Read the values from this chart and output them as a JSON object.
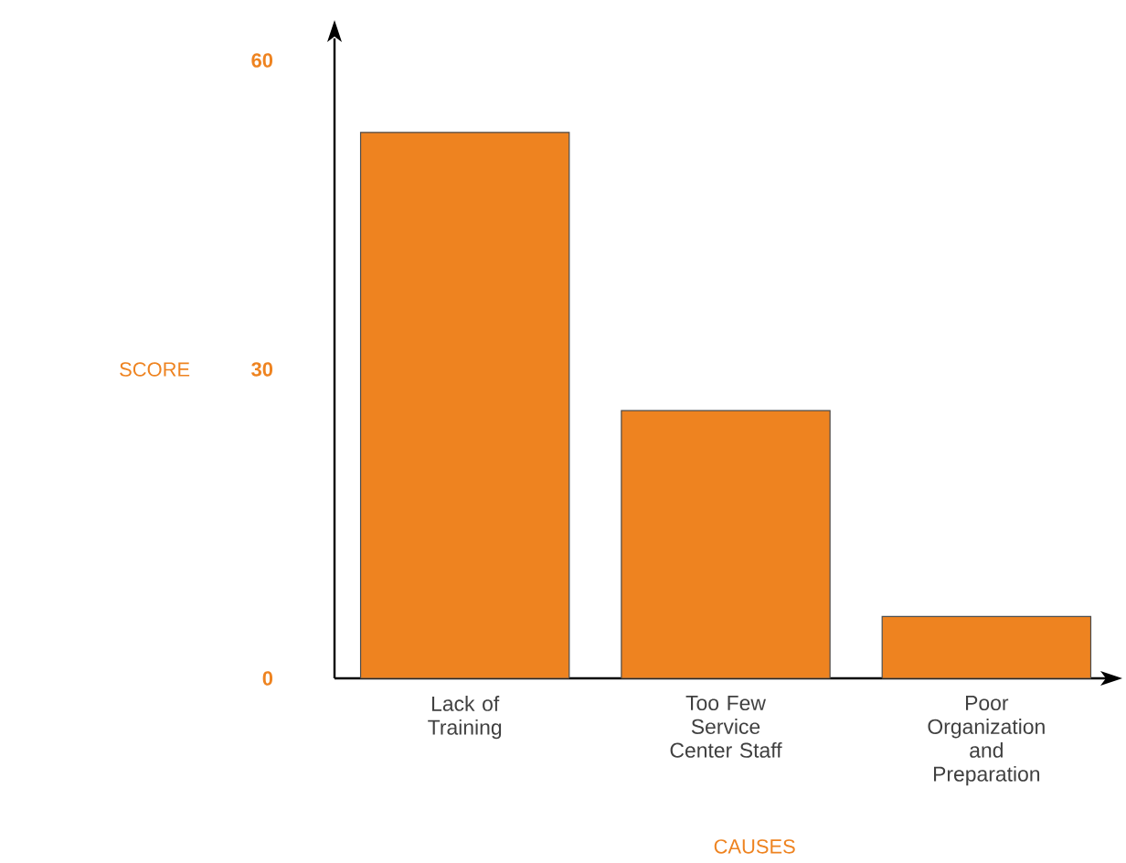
{
  "chart_data": {
    "type": "bar",
    "xlabel": "CAUSES",
    "ylabel": "SCORE",
    "categories": [
      "Lack of Training",
      "Too Few Service Center Staff",
      "Poor Organization and Preparation"
    ],
    "values": [
      53,
      26,
      6
    ],
    "color": "#ee8320",
    "ylim": [
      0,
      60
    ],
    "yticks": [
      0,
      30,
      60
    ]
  }
}
